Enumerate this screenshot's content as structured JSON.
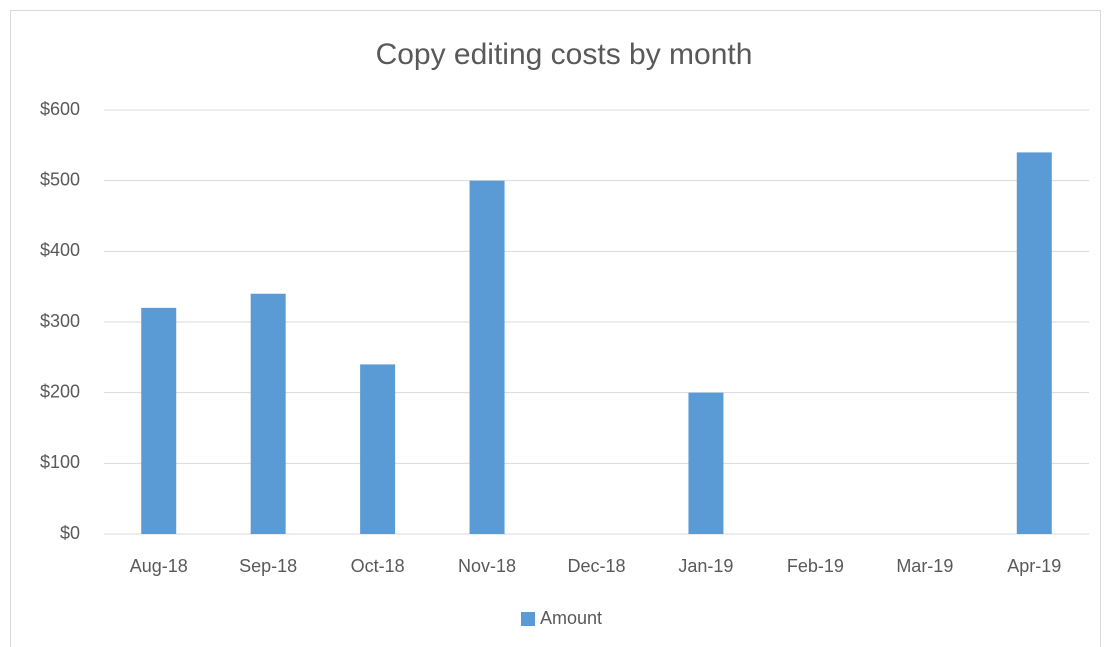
{
  "chart_data": {
    "type": "bar",
    "title": "Copy editing costs by month",
    "categories": [
      "Aug-18",
      "Sep-18",
      "Oct-18",
      "Nov-18",
      "Dec-18",
      "Jan-19",
      "Feb-19",
      "Mar-19",
      "Apr-19"
    ],
    "series": [
      {
        "name": "Amount",
        "color": "#5b9bd5",
        "values": [
          320,
          340,
          240,
          500,
          0,
          200,
          0,
          0,
          540
        ]
      }
    ],
    "ylim": [
      0,
      600
    ],
    "yticks": [
      {
        "value": 0,
        "label": "$0"
      },
      {
        "value": 100,
        "label": "$100"
      },
      {
        "value": 200,
        "label": "$200"
      },
      {
        "value": 300,
        "label": "$300"
      },
      {
        "value": 400,
        "label": "$400"
      },
      {
        "value": 500,
        "label": "$500"
      },
      {
        "value": 600,
        "label": "$600"
      }
    ],
    "grid": true,
    "legend": "bottom"
  }
}
